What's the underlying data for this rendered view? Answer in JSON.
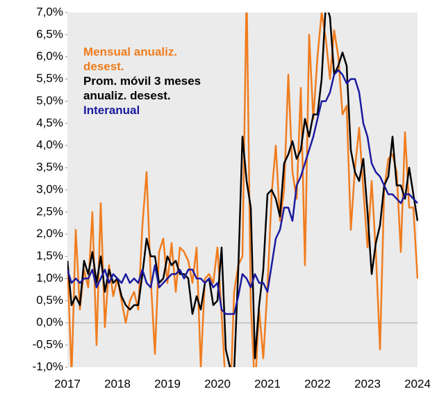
{
  "chart_data": {
    "type": "line",
    "categories": [
      "2017",
      null,
      null,
      null,
      null,
      null,
      null,
      null,
      null,
      null,
      null,
      null,
      "2018",
      null,
      null,
      null,
      null,
      null,
      null,
      null,
      null,
      null,
      null,
      null,
      "2019",
      null,
      null,
      null,
      null,
      null,
      null,
      null,
      null,
      null,
      null,
      null,
      "2020",
      null,
      null,
      null,
      null,
      null,
      null,
      null,
      null,
      null,
      null,
      null,
      "2021",
      null,
      null,
      null,
      null,
      null,
      null,
      null,
      null,
      null,
      null,
      null,
      "2022",
      null,
      null,
      null,
      null,
      null,
      null,
      null,
      null,
      null,
      null,
      null,
      "2023",
      null,
      null,
      null,
      null,
      null,
      null,
      null,
      null,
      null,
      null,
      null,
      "2024"
    ],
    "series": [
      {
        "name": "Mensual anualiz. desest.",
        "color": "#f07c1e",
        "values": [
          1.4,
          -1.2,
          2.1,
          0.3,
          1.2,
          0.8,
          2.5,
          -0.5,
          2.7,
          -0.1,
          1.3,
          0.6,
          1.0,
          0.5,
          0.0,
          0.5,
          0.7,
          0.3,
          2.2,
          3.4,
          1.0,
          -0.7,
          1.6,
          1.9,
          0.9,
          1.8,
          0.7,
          1.7,
          1.6,
          1.4,
          0.9,
          1.7,
          -1.0,
          1.0,
          1.1,
          0.9,
          1.7,
          0.2,
          -1.5,
          -2.0,
          0.7,
          1.3,
          1.5,
          7.5,
          0.4,
          -1.5,
          0.3,
          -0.8,
          0.8,
          2.9,
          4.0,
          2.3,
          3.0,
          5.6,
          3.4,
          2.8,
          5.3,
          1.3,
          6.5,
          4.6,
          6.0,
          7.0,
          6.4,
          5.5,
          6.6,
          6.0,
          4.7,
          4.9,
          2.1,
          3.5,
          4.4,
          3.0,
          1.7,
          3.2,
          1.6,
          -0.6,
          3.0,
          3.7,
          3.8,
          3.4,
          1.6,
          4.3,
          2.6,
          2.6,
          1.0
        ]
      },
      {
        "name": "Prom. móvil 3 meses anualiz. desest.",
        "color": "#000000",
        "values": [
          1.4,
          0.4,
          0.6,
          0.4,
          1.4,
          1.1,
          1.6,
          0.9,
          1.5,
          0.7,
          1.2,
          0.9,
          1.0,
          0.6,
          0.4,
          0.3,
          0.4,
          0.4,
          1.1,
          1.9,
          1.5,
          1.5,
          0.9,
          1.0,
          1.5,
          1.3,
          1.4,
          1.1,
          1.1,
          1.0,
          0.2,
          0.6,
          0.3,
          0.9,
          1.0,
          0.4,
          0.5,
          1.7,
          -0.6,
          -1.0,
          -1.1,
          1.2,
          4.2,
          3.2,
          2.6,
          -0.8,
          0.4,
          1.2,
          2.9,
          3.0,
          2.8,
          2.4,
          3.6,
          3.8,
          4.1,
          3.7,
          3.9,
          4.6,
          4.2,
          4.7,
          4.7,
          5.5,
          7.2,
          6.9,
          5.6,
          5.8,
          6.1,
          5.8,
          3.9,
          3.4,
          3.2,
          3.7,
          2.5,
          1.1,
          1.8,
          2.2,
          3.1,
          3.3,
          4.2,
          3.1,
          3.1,
          2.8,
          3.5,
          2.9,
          2.3
        ]
      },
      {
        "name": "Interanual",
        "color": "#1a1aa0",
        "values": [
          1.2,
          0.9,
          1.0,
          0.9,
          1.0,
          1.0,
          1.2,
          0.8,
          1.0,
          1.2,
          0.9,
          1.1,
          1.0,
          0.9,
          1.1,
          0.9,
          1.0,
          0.9,
          1.2,
          0.9,
          0.8,
          1.3,
          0.8,
          0.9,
          1.0,
          1.1,
          1.1,
          1.2,
          1.0,
          1.2,
          1.2,
          1.0,
          1.0,
          0.9,
          1.0,
          0.8,
          0.9,
          0.3,
          0.2,
          0.2,
          0.2,
          0.6,
          1.1,
          1.0,
          0.8,
          1.1,
          0.9,
          0.9,
          0.7,
          1.3,
          1.9,
          2.1,
          2.6,
          2.6,
          2.3,
          3.1,
          3.3,
          3.6,
          3.9,
          4.2,
          4.6,
          5.0,
          5.0,
          5.2,
          5.6,
          5.7,
          5.6,
          5.4,
          5.5,
          5.5,
          5.2,
          4.5,
          4.2,
          3.6,
          3.4,
          3.3,
          3.1,
          2.9,
          2.9,
          2.8,
          2.7,
          2.9,
          2.9,
          2.8,
          2.7
        ]
      }
    ],
    "ylim": [
      -1.0,
      7.0
    ],
    "yticks": [
      {
        "value": -1.0,
        "label": "-1,0%"
      },
      {
        "value": -0.5,
        "label": "-0,5%"
      },
      {
        "value": 0,
        "label": "0,0%"
      },
      {
        "value": 0.5,
        "label": "0,5%"
      },
      {
        "value": 1.0,
        "label": "1,0%"
      },
      {
        "value": 1.5,
        "label": "1,5%"
      },
      {
        "value": 2.0,
        "label": "2,0%"
      },
      {
        "value": 2.5,
        "label": "2,5%"
      },
      {
        "value": 3.0,
        "label": "3,0%"
      },
      {
        "value": 3.5,
        "label": "3,5%"
      },
      {
        "value": 4.0,
        "label": "4,0%"
      },
      {
        "value": 4.5,
        "label": "4,5%"
      },
      {
        "value": 5.0,
        "label": "5,0%"
      },
      {
        "value": 5.5,
        "label": "5,5%"
      },
      {
        "value": 6.0,
        "label": "6,0%"
      },
      {
        "value": 6.5,
        "label": "6,5%"
      },
      {
        "value": 7.0,
        "label": "7,0%"
      }
    ],
    "background": "#ebebeb",
    "zero_line": true
  }
}
